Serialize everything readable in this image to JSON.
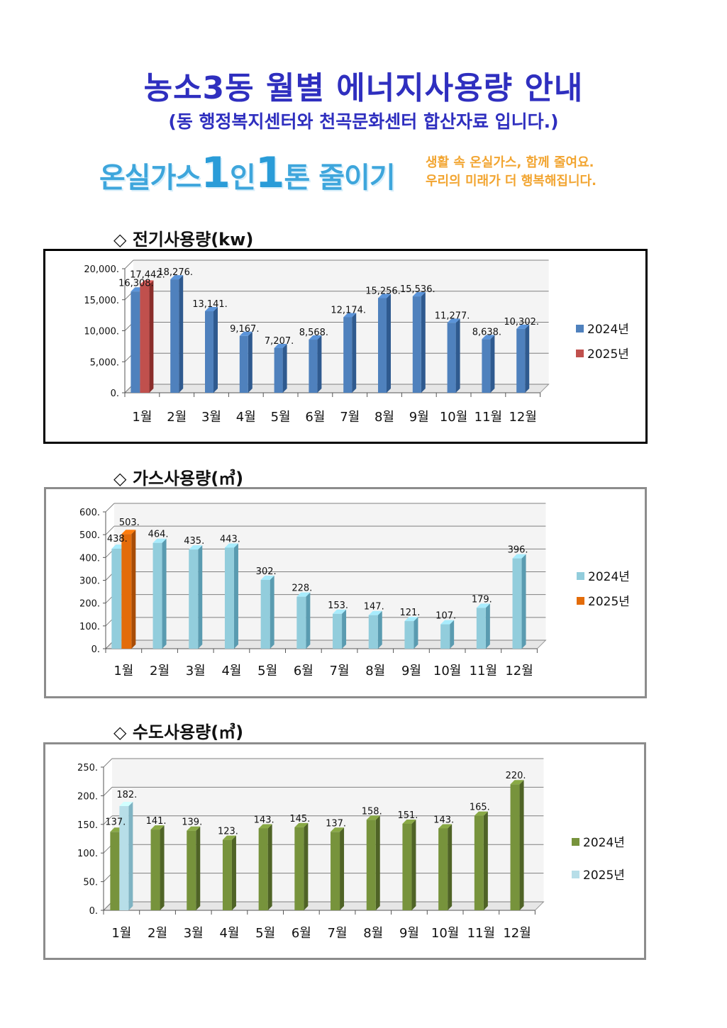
{
  "header": {
    "title": "농소3동 월별 에너지사용량 안내",
    "subtitle": "(동 행정복지센터와 천곡문화센터 합산자료 입니다.)"
  },
  "banner": {
    "main_parts": [
      "온실가스",
      "1",
      "인",
      "1",
      "톤 줄이기"
    ],
    "side_line1": "생활 속 온실가스, 함께 줄여요.",
    "side_line2": "우리의 미래가 더 행복해집니다."
  },
  "sections": {
    "electric": {
      "title": "◇ 전기사용량(kw)"
    },
    "gas": {
      "title": "◇ 가스사용량(㎥)"
    },
    "water": {
      "title": "◇ 수도사용량(㎥)"
    }
  },
  "chart_data": [
    {
      "type": "bar",
      "categories": [
        "1월",
        "2월",
        "3월",
        "4월",
        "5월",
        "6월",
        "7월",
        "8월",
        "9월",
        "10월",
        "11월",
        "12월"
      ],
      "series": [
        {
          "name": "2024년",
          "values": [
            16308,
            18276,
            13141,
            9167,
            7207,
            8568,
            12174,
            15256,
            15536,
            11277,
            8638,
            10302
          ],
          "labels": [
            "16,308.",
            "18,276.",
            "13,141.",
            "9,167.",
            "7,207.",
            "8,568.",
            "12,174.",
            "15,256.",
            "15,536.",
            "11,277.",
            "8,638.",
            "10,302."
          ],
          "color": "#4f81bd",
          "side": "#2f5a8f"
        },
        {
          "name": "2025년",
          "values": [
            17442,
            null,
            null,
            null,
            null,
            null,
            null,
            null,
            null,
            null,
            null,
            null
          ],
          "labels": [
            "17,442."
          ],
          "color": "#c0504d",
          "side": "#8a2d2a"
        }
      ],
      "ylim": [
        0,
        20000
      ],
      "ytick_labels": [
        "0.",
        "5,000.",
        "10,000.",
        "15,000.",
        "20,000."
      ],
      "grid": true,
      "legend": "right"
    },
    {
      "type": "bar",
      "categories": [
        "1월",
        "2월",
        "3월",
        "4월",
        "5월",
        "6월",
        "7월",
        "8월",
        "9월",
        "10월",
        "11월",
        "12월"
      ],
      "series": [
        {
          "name": "2024년",
          "values": [
            438,
            464,
            435,
            443,
            302,
            228,
            153,
            147,
            121,
            107,
            179,
            396
          ],
          "labels": [
            "438.",
            "464.",
            "435.",
            "443.",
            "302.",
            "228.",
            "153.",
            "147.",
            "121.",
            "107.",
            "179.",
            "396."
          ],
          "color": "#92cddc",
          "side": "#5a9bb0"
        },
        {
          "name": "2025년",
          "values": [
            503,
            null,
            null,
            null,
            null,
            null,
            null,
            null,
            null,
            null,
            null,
            null
          ],
          "labels": [
            "503."
          ],
          "color": "#e36c0a",
          "side": "#a84c06"
        }
      ],
      "ylim": [
        0,
        600
      ],
      "ytick_labels": [
        "0.",
        "100.",
        "200.",
        "300.",
        "400.",
        "500.",
        "600."
      ],
      "grid": true,
      "legend": "right"
    },
    {
      "type": "bar",
      "categories": [
        "1월",
        "2월",
        "3월",
        "4월",
        "5월",
        "6월",
        "7월",
        "8월",
        "9월",
        "10월",
        "11월",
        "12월"
      ],
      "series": [
        {
          "name": "2024년",
          "values": [
            137,
            141,
            139,
            123,
            143,
            145,
            137,
            158,
            151,
            143,
            165,
            220
          ],
          "labels": [
            "137.",
            "141.",
            "139.",
            "123.",
            "143.",
            "145.",
            "137.",
            "158.",
            "151.",
            "143.",
            "165.",
            "220."
          ],
          "color": "#77933c",
          "side": "#4f6326"
        },
        {
          "name": "2025년",
          "values": [
            182,
            null,
            null,
            null,
            null,
            null,
            null,
            null,
            null,
            null,
            null,
            null
          ],
          "labels": [
            "182."
          ],
          "color": "#b7dee8",
          "side": "#7fb3c2"
        }
      ],
      "ylim": [
        0,
        250
      ],
      "ytick_labels": [
        "0.",
        "50.",
        "100.",
        "150.",
        "200.",
        "250."
      ],
      "grid": true,
      "legend": "right"
    }
  ]
}
